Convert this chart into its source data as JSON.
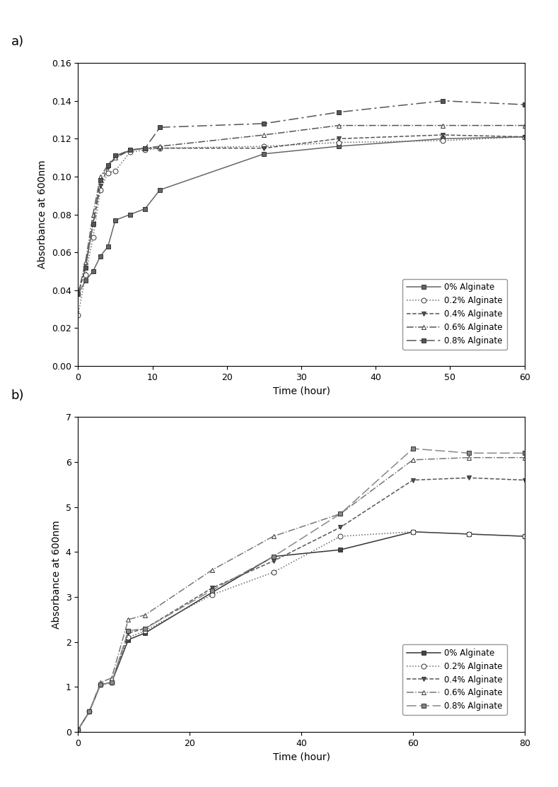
{
  "chart_a": {
    "label": "a)",
    "xlabel": "Time (hour)",
    "ylabel": "Absorbance at 600nm",
    "xlim": [
      0,
      60
    ],
    "ylim": [
      0.0,
      0.16
    ],
    "yticks": [
      0.0,
      0.02,
      0.04,
      0.06,
      0.08,
      0.1,
      0.12,
      0.14,
      0.16
    ],
    "xticks": [
      0,
      10,
      20,
      30,
      40,
      50,
      60
    ],
    "series": [
      {
        "label": "0% Alginate",
        "color": "#666666",
        "linestyle": "-",
        "marker": "s",
        "markerfacecolor": "#666666",
        "markersize": 5,
        "x": [
          0,
          1,
          2,
          3,
          4,
          5,
          7,
          9,
          11,
          25,
          35,
          49,
          60
        ],
        "y": [
          0.038,
          0.045,
          0.05,
          0.058,
          0.063,
          0.077,
          0.08,
          0.083,
          0.093,
          0.112,
          0.116,
          0.12,
          0.121
        ]
      },
      {
        "label": "0.2% Alginate",
        "color": "#666666",
        "linestyle": ":",
        "marker": "o",
        "markerfacecolor": "white",
        "markersize": 5,
        "x": [
          0,
          1,
          2,
          3,
          4,
          5,
          7,
          9,
          11,
          25,
          35,
          49,
          60
        ],
        "y": [
          0.027,
          0.048,
          0.068,
          0.093,
          0.102,
          0.103,
          0.113,
          0.114,
          0.115,
          0.116,
          0.118,
          0.119,
          0.121
        ]
      },
      {
        "label": "0.4% Alginate",
        "color": "#555555",
        "linestyle": "--",
        "marker": "v",
        "markerfacecolor": "#555555",
        "markersize": 5,
        "x": [
          0,
          1,
          2,
          3,
          4,
          5,
          7,
          9,
          11,
          25,
          35,
          49,
          60
        ],
        "y": [
          0.038,
          0.052,
          0.075,
          0.095,
          0.105,
          0.11,
          0.114,
          0.115,
          0.115,
          0.115,
          0.12,
          0.122,
          0.121
        ]
      },
      {
        "label": "0.6% Alginate",
        "color": "#555555",
        "linestyle": "-.",
        "marker": "^",
        "markerfacecolor": "white",
        "markersize": 5,
        "x": [
          0,
          1,
          2,
          3,
          4,
          5,
          7,
          9,
          11,
          25,
          35,
          49,
          60
        ],
        "y": [
          0.038,
          0.055,
          0.08,
          0.1,
          0.106,
          0.11,
          0.114,
          0.115,
          0.116,
          0.122,
          0.127,
          0.127,
          0.127
        ]
      },
      {
        "label": "0.8% Alginate",
        "color": "#555555",
        "linestyle": "--",
        "marker": "s",
        "markerfacecolor": "#555555",
        "markersize": 5,
        "dashes": [
          9,
          3,
          2,
          3
        ],
        "x": [
          0,
          1,
          2,
          3,
          4,
          5,
          7,
          9,
          11,
          25,
          35,
          49,
          60
        ],
        "y": [
          0.038,
          0.052,
          0.075,
          0.098,
          0.106,
          0.111,
          0.114,
          0.115,
          0.126,
          0.128,
          0.134,
          0.14,
          0.138
        ]
      }
    ]
  },
  "chart_b": {
    "label": "b)",
    "xlabel": "Time (hour)",
    "ylabel": "Absorbance at 600nm",
    "xlim": [
      0,
      80
    ],
    "ylim": [
      0,
      7
    ],
    "yticks": [
      0,
      1,
      2,
      3,
      4,
      5,
      6,
      7
    ],
    "xticks": [
      0,
      20,
      40,
      60,
      80
    ],
    "series": [
      {
        "label": "0% Alginate",
        "color": "#333333",
        "linestyle": "-",
        "marker": "s",
        "markerfacecolor": "#444444",
        "markersize": 5,
        "x": [
          0,
          2,
          4,
          6,
          9,
          12,
          24,
          35,
          47,
          60,
          70,
          80
        ],
        "y": [
          0.05,
          0.45,
          1.05,
          1.1,
          2.05,
          2.2,
          3.1,
          3.9,
          4.05,
          4.45,
          4.4,
          4.35
        ]
      },
      {
        "label": "0.2% Alginate",
        "color": "#666666",
        "linestyle": ":",
        "marker": "o",
        "markerfacecolor": "white",
        "markersize": 5,
        "x": [
          0,
          2,
          4,
          6,
          9,
          12,
          24,
          35,
          47,
          60,
          70,
          80
        ],
        "y": [
          0.05,
          0.45,
          1.05,
          1.1,
          2.1,
          2.25,
          3.05,
          3.55,
          4.35,
          4.45,
          4.4,
          4.35
        ]
      },
      {
        "label": "0.4% Alginate",
        "color": "#555555",
        "linestyle": "--",
        "marker": "v",
        "markerfacecolor": "#555555",
        "markersize": 5,
        "x": [
          0,
          2,
          4,
          6,
          9,
          12,
          24,
          35,
          47,
          60,
          70,
          80
        ],
        "y": [
          0.05,
          0.45,
          1.05,
          1.1,
          2.2,
          2.3,
          3.2,
          3.8,
          4.55,
          5.6,
          5.65,
          5.6
        ]
      },
      {
        "label": "0.6% Alginate",
        "color": "#777777",
        "linestyle": "-.",
        "marker": "^",
        "markerfacecolor": "white",
        "markersize": 5,
        "x": [
          0,
          2,
          4,
          6,
          9,
          12,
          24,
          35,
          47,
          60,
          70,
          80
        ],
        "y": [
          0.05,
          0.45,
          1.1,
          1.2,
          2.5,
          2.6,
          3.6,
          4.35,
          4.85,
          6.05,
          6.1,
          6.1
        ]
      },
      {
        "label": "0.8% Alginate",
        "color": "#888888",
        "linestyle": "--",
        "marker": "s",
        "markerfacecolor": "#888888",
        "markersize": 5,
        "dashes": [
          9,
          3
        ],
        "x": [
          0,
          2,
          4,
          6,
          9,
          12,
          24,
          35,
          47,
          60,
          70,
          80
        ],
        "y": [
          0.05,
          0.45,
          1.05,
          1.1,
          2.25,
          2.3,
          3.15,
          3.9,
          4.85,
          6.3,
          6.2,
          6.2
        ]
      }
    ]
  },
  "background_color": "#ffffff"
}
